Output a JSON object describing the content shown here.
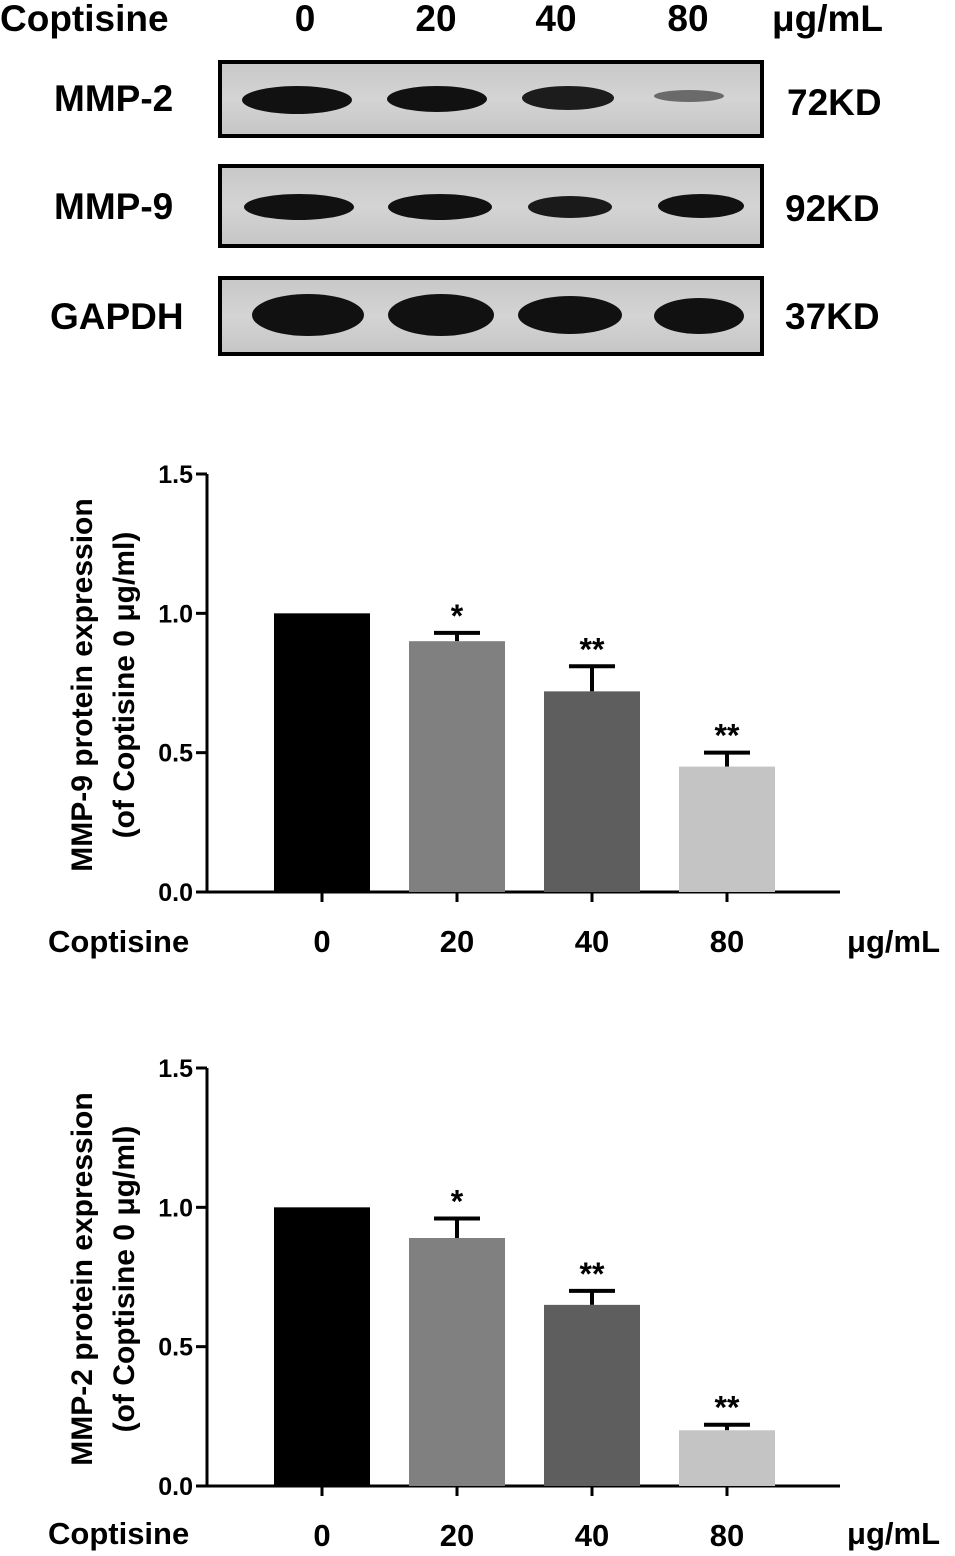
{
  "blot": {
    "header": {
      "agent": "Coptisine",
      "doses": [
        "0",
        "20",
        "40",
        "80"
      ],
      "unit": "μg/mL"
    },
    "rows": [
      {
        "protein": "MMP-2",
        "size": "72KD",
        "band_intensity": [
          1.0,
          0.9,
          0.7,
          0.2
        ]
      },
      {
        "protein": "MMP-9",
        "size": "92KD",
        "band_intensity": [
          1.0,
          1.0,
          0.75,
          0.75
        ]
      },
      {
        "protein": "GAPDH",
        "size": "37KD",
        "band_intensity": [
          1.0,
          1.0,
          1.0,
          1.0
        ]
      }
    ]
  },
  "chart_data": [
    {
      "type": "bar",
      "ylabel_line1": "MMP-9 protein expression",
      "ylabel_line2": "(of Coptisine 0 μg/ml)",
      "x_agent": "Coptisine",
      "x_unit": "μg/mL",
      "categories": [
        "0",
        "20",
        "40",
        "80"
      ],
      "values": [
        1.0,
        0.9,
        0.72,
        0.45
      ],
      "errors": [
        0,
        0.03,
        0.09,
        0.05
      ],
      "significance": [
        "",
        "*",
        "**",
        "**"
      ],
      "bar_colors": [
        "#000000",
        "#808080",
        "#5e5e5e",
        "#c4c4c4"
      ],
      "ylim": [
        0,
        1.5
      ],
      "yticks": [
        "0.0",
        "0.5",
        "1.0",
        "1.5"
      ]
    },
    {
      "type": "bar",
      "ylabel_line1": "MMP-2 protein expression",
      "ylabel_line2": "(of Coptisine 0 μg/ml)",
      "x_agent": "Coptisine",
      "x_unit": "μg/mL",
      "categories": [
        "0",
        "20",
        "40",
        "80"
      ],
      "values": [
        1.0,
        0.89,
        0.65,
        0.2
      ],
      "errors": [
        0,
        0.07,
        0.05,
        0.02
      ],
      "significance": [
        "",
        "*",
        "**",
        "**"
      ],
      "bar_colors": [
        "#000000",
        "#808080",
        "#5e5e5e",
        "#c4c4c4"
      ],
      "ylim": [
        0,
        1.5
      ],
      "yticks": [
        "0.0",
        "0.5",
        "1.0",
        "1.5"
      ]
    }
  ]
}
